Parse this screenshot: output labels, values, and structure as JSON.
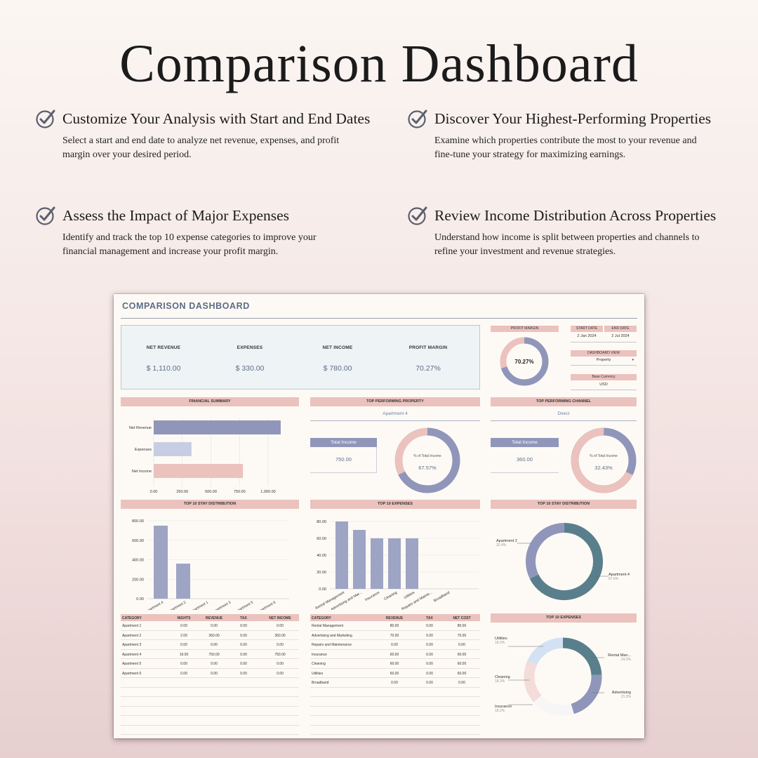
{
  "page": {
    "title": "Comparison Dashboard",
    "features": [
      {
        "title": "Customize Your Analysis with Start and End Dates",
        "desc": "Select a start and end date to analyze net revenue, expenses, and profit margin over your desired period."
      },
      {
        "title": "Discover Your Highest-Performing Properties",
        "desc": "Examine which properties contribute the most to your revenue and fine-tune your strategy for maximizing earnings."
      },
      {
        "title": "Assess the Impact of Major Expenses",
        "desc": "Identify and track the top 10 expense categories to improve your financial management and increase your profit margin."
      },
      {
        "title": "Review Income Distribution Across Properties",
        "desc": "Understand how income is split between properties and channels to refine your investment and revenue strategies."
      }
    ]
  },
  "sheet": {
    "title": "COMPARISON DASHBOARD",
    "kpis": [
      {
        "label": "NET REVENUE",
        "value": "$ 1,110.00"
      },
      {
        "label": "EXPENSES",
        "value": "$ 330.00"
      },
      {
        "label": "NET INCOME",
        "value": "$ 780.00"
      },
      {
        "label": "PROFIT MARGIN",
        "value": "70.27%"
      }
    ],
    "profit_margin": {
      "label": "PROFIT MARGIN",
      "value": "70.27%",
      "percent": 70.27
    },
    "dates": {
      "start_label": "START DATE",
      "end_label": "END DATE",
      "start": "2 Jan 2024",
      "end": "2 Jul 2024"
    },
    "dashboard_view": {
      "label": "DASHBOARD VIEW",
      "value": "Property"
    },
    "base_currency": {
      "label": "Base Currency",
      "value": "USD"
    },
    "financial_summary": {
      "title": "FINANCIAL SUMMARY",
      "categories": [
        "Net Revenue",
        "Expenses",
        "Net Income"
      ],
      "values": [
        1110,
        330,
        780
      ],
      "ticks": [
        "0.00",
        "250.00",
        "500.00",
        "750.00",
        "1,000.00"
      ],
      "colors": [
        "#9096ba",
        "#c7cde3",
        "#ebc2bd"
      ]
    },
    "top_property": {
      "title": "TOP PERFORMING PROPERTY",
      "name": "Apartment 4",
      "total_label": "Total Income",
      "total": "750.00",
      "pct_label": "% of Total Income",
      "pct": "67.57%",
      "percent": 67.57
    },
    "top_channel": {
      "title": "TOP PERFORMING CHANNEL",
      "name": "Direct",
      "total_label": "Total Income",
      "total": "360.00",
      "pct_label": "% of Total Income",
      "pct": "32.43%",
      "percent": 32.43
    },
    "stay_bar": {
      "title": "TOP 10 STAY DISTRIBUTION",
      "categories": [
        "Apartment 4",
        "Apartment 2",
        "Apartment 1",
        "Apartment 3",
        "Apartment 5",
        "Apartment 6"
      ],
      "values": [
        750,
        360,
        0,
        0,
        0,
        0
      ],
      "ticks": [
        "0.00",
        "200.00",
        "400.00",
        "600.00",
        "800.00"
      ]
    },
    "expenses_bar": {
      "title": "TOP 10 EXPENSES",
      "categories": [
        "Rental Management",
        "Advertising and Mar...",
        "Insurance",
        "Cleaning",
        "Utilities",
        "Repairs and Mainte...",
        "Broadband"
      ],
      "values": [
        80,
        70,
        60,
        60,
        60,
        0,
        0
      ],
      "ticks": [
        "0.00",
        "20.00",
        "40.00",
        "60.00",
        "80.00"
      ]
    },
    "stay_donut": {
      "title": "TOP 10 STAY DISTRIBUTION",
      "slices": [
        {
          "name": "Apartment 2",
          "pct": "32.4%",
          "value": 32.4,
          "color": "#9096ba"
        },
        {
          "name": "Apartment 4",
          "pct": "67.6%",
          "value": 67.6,
          "color": "#5a7f8c"
        }
      ]
    },
    "expenses_donut": {
      "title": "TOP 10 EXPENSES",
      "slices": [
        {
          "name": "Rental Man...",
          "pct": "24.2%",
          "value": 24.2,
          "color": "#5a7f8c"
        },
        {
          "name": "Advertising",
          "pct": "21.2%",
          "value": 21.2,
          "color": "#9096ba"
        },
        {
          "name": "Insurance",
          "pct": "18.2%",
          "value": 18.2,
          "color": "#f6f6f6"
        },
        {
          "name": "Cleaning",
          "pct": "18.2%",
          "value": 18.2,
          "color": "#f3dcd9"
        },
        {
          "name": "Utilities",
          "pct": "18.2%",
          "value": 18.2,
          "color": "#d3e1f2"
        }
      ]
    },
    "stay_table": {
      "headers": [
        "CATEGORY",
        "NIGHTS",
        "REVENUE",
        "TAX",
        "NET INCOME"
      ],
      "rows": [
        [
          "Apartment 1",
          "0.00",
          "0.00",
          "0.00",
          "0.00"
        ],
        [
          "Apartment 2",
          "2.00",
          "360.00",
          "0.00",
          "360.00"
        ],
        [
          "Apartment 3",
          "0.00",
          "0.00",
          "0.00",
          "0.00"
        ],
        [
          "Apartment 4",
          "19.00",
          "750.00",
          "0.00",
          "750.00"
        ],
        [
          "Apartment 5",
          "0.00",
          "0.00",
          "0.00",
          "0.00"
        ],
        [
          "Apartment 6",
          "0.00",
          "0.00",
          "0.00",
          "0.00"
        ]
      ]
    },
    "expense_table": {
      "headers": [
        "CATEGORY",
        "REVENUE",
        "TAX",
        "NET COST"
      ],
      "rows": [
        [
          "Rental Management",
          "80.00",
          "0.00",
          "80.00"
        ],
        [
          "Advertising and Marketing",
          "70.00",
          "0.00",
          "70.00"
        ],
        [
          "Repairs and Maintenance",
          "0.00",
          "0.00",
          "0.00"
        ],
        [
          "Insurance",
          "60.00",
          "0.00",
          "60.00"
        ],
        [
          "Cleaning",
          "60.00",
          "0.00",
          "60.00"
        ],
        [
          "Utilities",
          "60.00",
          "0.00",
          "60.00"
        ],
        [
          "Broadband",
          "0.00",
          "0.00",
          "0.00"
        ]
      ]
    },
    "colors": {
      "accent_pink": "#ebc2bd",
      "accent_purple": "#9096ba",
      "teal": "#5a7f8c",
      "title_blue": "#5b6c86"
    }
  }
}
